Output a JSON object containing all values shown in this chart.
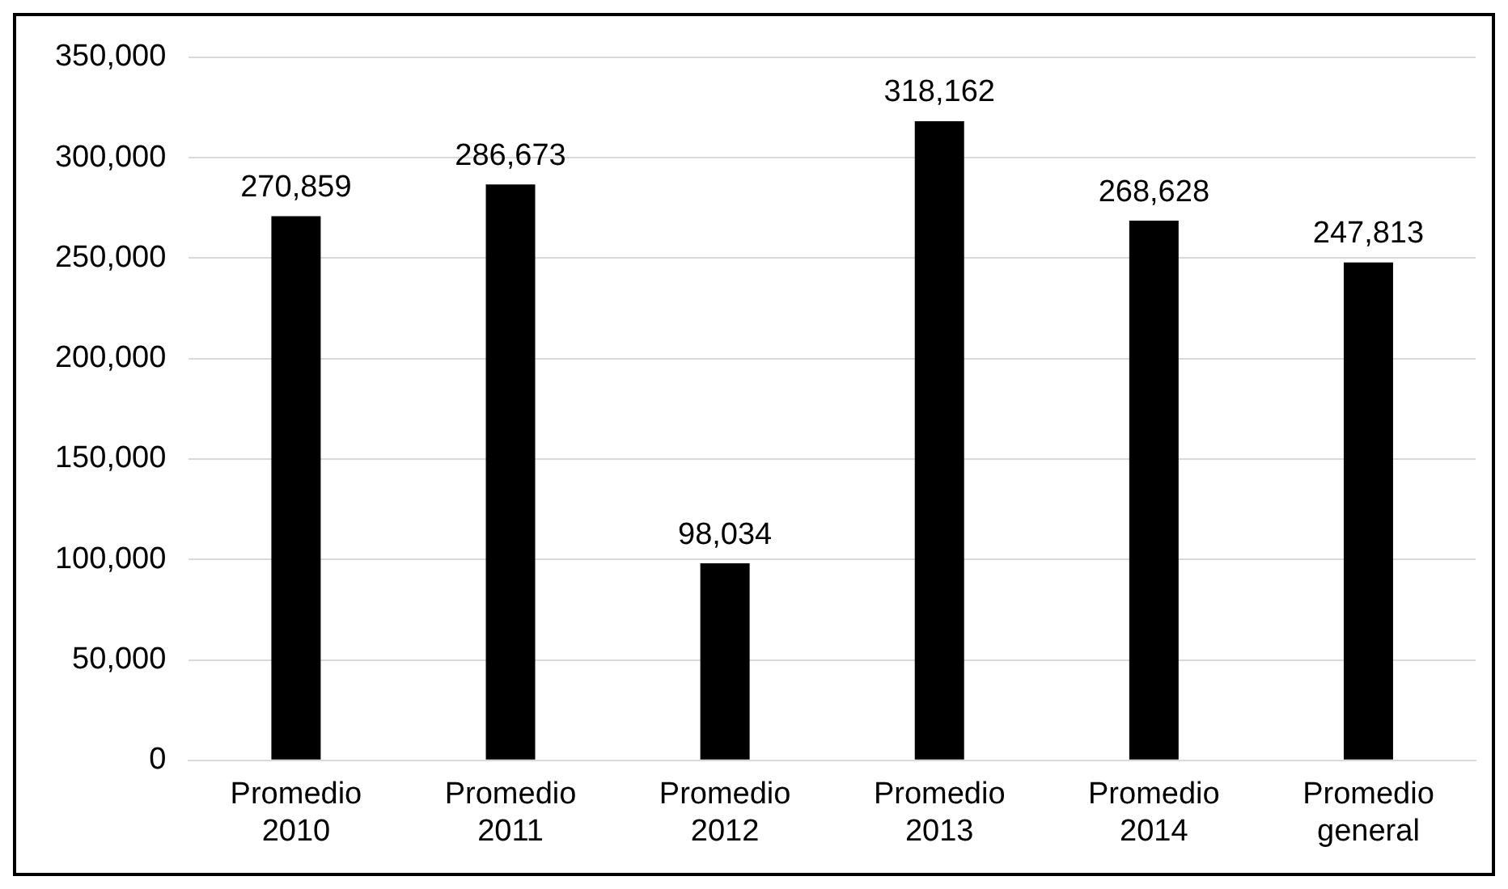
{
  "chart_data": {
    "type": "bar",
    "categories": [
      "Promedio 2010",
      "Promedio 2011",
      "Promedio 2012",
      "Promedio 2013",
      "Promedio 2014",
      "Promedio general"
    ],
    "values": [
      270859,
      286673,
      98034,
      318162,
      268628,
      247813
    ],
    "value_labels": [
      "270,859",
      "286,673",
      "98,034",
      "318,162",
      "268,628",
      "247,813"
    ],
    "color": "#000000",
    "ylim": [
      0,
      350000
    ],
    "yticks": [
      0,
      {
        "value": 50000,
        "label": "50,000"
      },
      {
        "value": 100000,
        "label": "100,000"
      },
      {
        "value": 150000,
        "label": "150,000"
      },
      {
        "value": 200000,
        "label": "200,000"
      },
      {
        "value": 250000,
        "label": "250,000"
      },
      {
        "value": 300000,
        "label": "300,000"
      },
      {
        "value": 350000,
        "label": "350,000"
      }
    ],
    "grid": "y"
  }
}
